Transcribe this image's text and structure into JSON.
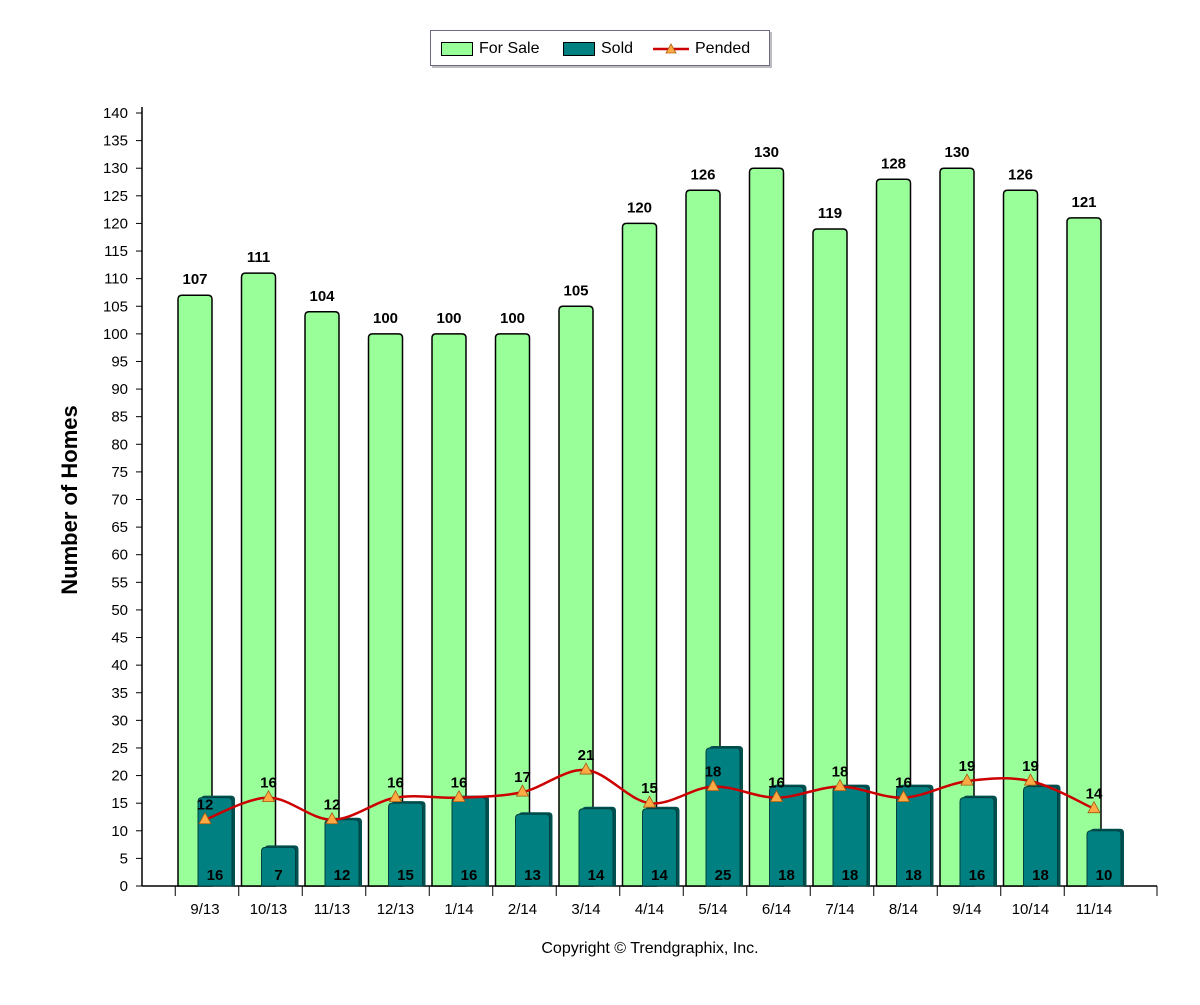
{
  "chart_data": {
    "type": "bar",
    "title": "",
    "xlabel": "",
    "ylabel": "Number of Homes",
    "ylim": [
      0,
      140
    ],
    "ytick_step": 5,
    "grid": false,
    "legend_position": "top-center",
    "categories": [
      "9/13",
      "10/13",
      "11/13",
      "12/13",
      "1/14",
      "2/14",
      "3/14",
      "4/14",
      "5/14",
      "6/14",
      "7/14",
      "8/14",
      "9/14",
      "10/14",
      "11/14"
    ],
    "series": [
      {
        "name": "For Sale",
        "kind": "bar",
        "color": "#99ff99",
        "values": [
          107,
          111,
          104,
          100,
          100,
          100,
          105,
          120,
          126,
          130,
          119,
          128,
          130,
          126,
          121
        ]
      },
      {
        "name": "Sold",
        "kind": "bar",
        "color": "#008080",
        "values": [
          16,
          7,
          12,
          15,
          16,
          13,
          14,
          14,
          25,
          18,
          18,
          18,
          16,
          18,
          10
        ]
      },
      {
        "name": "Pended",
        "kind": "line",
        "color": "#cc0000",
        "marker_color": "#ffaa44",
        "values": [
          12,
          16,
          12,
          16,
          16,
          17,
          21,
          15,
          18,
          16,
          18,
          16,
          19,
          19,
          14
        ]
      }
    ]
  },
  "copyright": "Copyright © Trendgraphix, Inc."
}
